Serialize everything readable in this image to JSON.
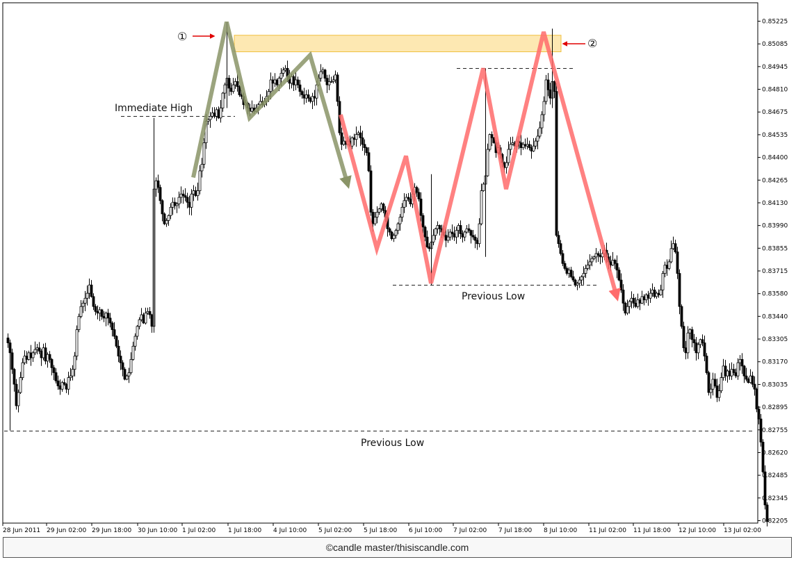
{
  "chart_data": {
    "type": "candlestick",
    "title": "",
    "y_ticks": [
      "0.85225",
      "0.85085",
      "0.84945",
      "0.84810",
      "0.84675",
      "0.84535",
      "0.84400",
      "0.84265",
      "0.84130",
      "0.83990",
      "0.83855",
      "0.83715",
      "0.83580",
      "0.83440",
      "0.83305",
      "0.83170",
      "0.83035",
      "0.82895",
      "0.82755",
      "0.82620",
      "0.82485",
      "0.82345",
      "0.82205"
    ],
    "x_ticks": [
      "28 Jun 2011",
      "29 Jun 02:00",
      "29 Jun 18:00",
      "30 Jun 10:00",
      "1 Jul 02:00",
      "1 Jul 18:00",
      "4 Jul 10:00",
      "5 Jul 02:00",
      "5 Jul 18:00",
      "6 Jul 10:00",
      "7 Jul 02:00",
      "7 Jul 18:00",
      "8 Jul 10:00",
      "11 Jul 02:00",
      "11 Jul 18:00",
      "12 Jul 10:00",
      "13 Jul 02:00"
    ],
    "ylim": [
      0.82185,
      0.8529
    ],
    "close_path": [
      [
        0,
        0.8331
      ],
      [
        3,
        0.8328
      ],
      [
        6,
        0.8322
      ],
      [
        9,
        0.8312
      ],
      [
        12,
        0.8303
      ],
      [
        15,
        0.829
      ],
      [
        18,
        0.8298
      ],
      [
        21,
        0.8307
      ],
      [
        24,
        0.8316
      ],
      [
        27,
        0.832
      ],
      [
        30,
        0.8318
      ],
      [
        33,
        0.8322
      ],
      [
        36,
        0.8319
      ],
      [
        39,
        0.8322
      ],
      [
        42,
        0.8324
      ],
      [
        45,
        0.8325
      ],
      [
        48,
        0.8323
      ],
      [
        51,
        0.8319
      ],
      [
        54,
        0.8325
      ],
      [
        57,
        0.8317
      ],
      [
        60,
        0.8321
      ],
      [
        63,
        0.8318
      ],
      [
        66,
        0.8313
      ],
      [
        69,
        0.831
      ],
      [
        72,
        0.8305
      ],
      [
        75,
        0.8302
      ],
      [
        78,
        0.83
      ],
      [
        81,
        0.8304
      ],
      [
        84,
        0.8303
      ],
      [
        87,
        0.83
      ],
      [
        90,
        0.8307
      ],
      [
        93,
        0.8308
      ],
      [
        96,
        0.8312
      ],
      [
        99,
        0.832
      ],
      [
        102,
        0.8336
      ],
      [
        105,
        0.8344
      ],
      [
        108,
        0.835
      ],
      [
        111,
        0.8352
      ],
      [
        114,
        0.8355
      ],
      [
        117,
        0.8358
      ],
      [
        120,
        0.8363
      ],
      [
        123,
        0.8356
      ],
      [
        126,
        0.835
      ],
      [
        129,
        0.8347
      ],
      [
        132,
        0.8346
      ],
      [
        135,
        0.8348
      ],
      [
        138,
        0.8344
      ],
      [
        141,
        0.8343
      ],
      [
        144,
        0.8346
      ],
      [
        147,
        0.8343
      ],
      [
        150,
        0.834
      ],
      [
        153,
        0.8336
      ],
      [
        156,
        0.8332
      ],
      [
        159,
        0.8326
      ],
      [
        162,
        0.832
      ],
      [
        165,
        0.8316
      ],
      [
        168,
        0.8312
      ],
      [
        171,
        0.8306
      ],
      [
        174,
        0.8308
      ],
      [
        177,
        0.831
      ],
      [
        180,
        0.8318
      ],
      [
        183,
        0.8326
      ],
      [
        186,
        0.8332
      ],
      [
        189,
        0.8338
      ],
      [
        192,
        0.8342
      ],
      [
        195,
        0.8345
      ],
      [
        198,
        0.834
      ],
      [
        201,
        0.8346
      ],
      [
        204,
        0.8347
      ],
      [
        207,
        0.8345
      ],
      [
        210,
        0.8338
      ],
      [
        213,
        0.8421
      ],
      [
        216,
        0.8426
      ],
      [
        219,
        0.8422
      ],
      [
        222,
        0.8414
      ],
      [
        225,
        0.8406
      ],
      [
        228,
        0.84
      ],
      [
        231,
        0.8402
      ],
      [
        234,
        0.8405
      ],
      [
        237,
        0.841
      ],
      [
        240,
        0.8413
      ],
      [
        243,
        0.8411
      ],
      [
        246,
        0.8412
      ],
      [
        249,
        0.8416
      ],
      [
        252,
        0.8418
      ],
      [
        255,
        0.8417
      ],
      [
        258,
        0.8416
      ],
      [
        261,
        0.8413
      ],
      [
        264,
        0.841
      ],
      [
        267,
        0.8418
      ],
      [
        270,
        0.842
      ],
      [
        273,
        0.8417
      ],
      [
        276,
        0.842
      ],
      [
        279,
        0.8432
      ],
      [
        282,
        0.8436
      ],
      [
        285,
        0.8449
      ],
      [
        288,
        0.8462
      ],
      [
        291,
        0.8463
      ],
      [
        294,
        0.8465
      ],
      [
        297,
        0.8467
      ],
      [
        300,
        0.8465
      ],
      [
        303,
        0.8469
      ],
      [
        306,
        0.8464
      ],
      [
        309,
        0.847
      ],
      [
        312,
        0.8479
      ],
      [
        315,
        0.8484
      ],
      [
        318,
        0.8488
      ],
      [
        321,
        0.8482
      ],
      [
        324,
        0.848
      ],
      [
        327,
        0.8484
      ],
      [
        330,
        0.8486
      ],
      [
        333,
        0.8483
      ],
      [
        336,
        0.8478
      ],
      [
        339,
        0.8477
      ],
      [
        342,
        0.8472
      ],
      [
        345,
        0.8473
      ],
      [
        348,
        0.847
      ],
      [
        351,
        0.8468
      ],
      [
        354,
        0.847
      ],
      [
        357,
        0.8468
      ],
      [
        360,
        0.847
      ],
      [
        363,
        0.8472
      ],
      [
        366,
        0.8474
      ],
      [
        369,
        0.8472
      ],
      [
        372,
        0.8474
      ],
      [
        375,
        0.8477
      ],
      [
        378,
        0.848
      ],
      [
        381,
        0.8487
      ],
      [
        384,
        0.8485
      ],
      [
        387,
        0.8487
      ],
      [
        390,
        0.8484
      ],
      [
        393,
        0.8488
      ],
      [
        396,
        0.8491
      ],
      [
        399,
        0.8493
      ],
      [
        402,
        0.8494
      ],
      [
        405,
        0.8489
      ],
      [
        408,
        0.8485
      ],
      [
        411,
        0.8489
      ],
      [
        414,
        0.8484
      ],
      [
        417,
        0.8487
      ],
      [
        420,
        0.8484
      ],
      [
        423,
        0.848
      ],
      [
        426,
        0.8478
      ],
      [
        429,
        0.8476
      ],
      [
        432,
        0.8478
      ],
      [
        435,
        0.8476
      ],
      [
        438,
        0.8474
      ],
      [
        441,
        0.8477
      ],
      [
        444,
        0.8476
      ],
      [
        447,
        0.8484
      ],
      [
        450,
        0.8488
      ],
      [
        453,
        0.8492
      ],
      [
        456,
        0.8493
      ],
      [
        459,
        0.8488
      ],
      [
        462,
        0.8484
      ],
      [
        465,
        0.8486
      ],
      [
        468,
        0.8486
      ],
      [
        471,
        0.8487
      ],
      [
        474,
        0.849
      ],
      [
        477,
        0.8474
      ],
      [
        480,
        0.8455
      ],
      [
        483,
        0.8448
      ],
      [
        486,
        0.845
      ],
      [
        489,
        0.8448
      ],
      [
        492,
        0.845
      ],
      [
        495,
        0.8447
      ],
      [
        498,
        0.8452
      ],
      [
        501,
        0.8451
      ],
      [
        504,
        0.8454
      ],
      [
        507,
        0.8455
      ],
      [
        510,
        0.8452
      ],
      [
        513,
        0.8448
      ],
      [
        516,
        0.8446
      ],
      [
        519,
        0.8443
      ],
      [
        522,
        0.8432
      ],
      [
        525,
        0.8407
      ],
      [
        528,
        0.84
      ],
      [
        531,
        0.8404
      ],
      [
        534,
        0.8407
      ],
      [
        537,
        0.8409
      ],
      [
        540,
        0.8412
      ],
      [
        543,
        0.8408
      ],
      [
        546,
        0.8404
      ],
      [
        549,
        0.8397
      ],
      [
        552,
        0.8395
      ],
      [
        555,
        0.8391
      ],
      [
        558,
        0.8393
      ],
      [
        561,
        0.8396
      ],
      [
        564,
        0.84
      ],
      [
        567,
        0.8404
      ],
      [
        570,
        0.841
      ],
      [
        573,
        0.8414
      ],
      [
        576,
        0.8416
      ],
      [
        579,
        0.8415
      ],
      [
        582,
        0.8412
      ],
      [
        585,
        0.8418
      ],
      [
        588,
        0.8422
      ],
      [
        591,
        0.8419
      ],
      [
        594,
        0.8415
      ],
      [
        597,
        0.8405
      ],
      [
        600,
        0.8398
      ],
      [
        603,
        0.8392
      ],
      [
        606,
        0.8386
      ],
      [
        609,
        0.8385
      ],
      [
        612,
        0.8389
      ],
      [
        615,
        0.8393
      ],
      [
        618,
        0.8397
      ],
      [
        621,
        0.8399
      ],
      [
        624,
        0.8397
      ],
      [
        627,
        0.8395
      ],
      [
        630,
        0.8393
      ],
      [
        633,
        0.839
      ],
      [
        636,
        0.8392
      ],
      [
        639,
        0.8395
      ],
      [
        642,
        0.8394
      ],
      [
        645,
        0.8392
      ],
      [
        648,
        0.8396
      ],
      [
        651,
        0.8399
      ],
      [
        654,
        0.8394
      ],
      [
        657,
        0.8392
      ],
      [
        660,
        0.8395
      ],
      [
        663,
        0.8397
      ],
      [
        666,
        0.8396
      ],
      [
        669,
        0.8393
      ],
      [
        672,
        0.8392
      ],
      [
        675,
        0.839
      ],
      [
        678,
        0.8388
      ],
      [
        681,
        0.84
      ],
      [
        684,
        0.842
      ],
      [
        687,
        0.8424
      ],
      [
        690,
        0.8429
      ],
      [
        693,
        0.8445
      ],
      [
        696,
        0.8454
      ],
      [
        699,
        0.8452
      ],
      [
        702,
        0.8449
      ],
      [
        705,
        0.8443
      ],
      [
        708,
        0.8446
      ],
      [
        711,
        0.8442
      ],
      [
        714,
        0.8437
      ],
      [
        717,
        0.8434
      ],
      [
        720,
        0.8437
      ],
      [
        723,
        0.8445
      ],
      [
        726,
        0.8448
      ],
      [
        729,
        0.8449
      ],
      [
        732,
        0.8447
      ],
      [
        735,
        0.845
      ],
      [
        738,
        0.8449
      ],
      [
        741,
        0.8446
      ],
      [
        744,
        0.8448
      ],
      [
        747,
        0.8447
      ],
      [
        750,
        0.8448
      ],
      [
        753,
        0.8446
      ],
      [
        756,
        0.8444
      ],
      [
        759,
        0.8447
      ],
      [
        762,
        0.845
      ],
      [
        765,
        0.8453
      ],
      [
        768,
        0.8458
      ],
      [
        771,
        0.8466
      ],
      [
        774,
        0.8474
      ],
      [
        777,
        0.8487
      ],
      [
        780,
        0.8481
      ],
      [
        783,
        0.8476
      ],
      [
        786,
        0.8486
      ],
      [
        789,
        0.848
      ],
      [
        792,
        0.8393
      ],
      [
        795,
        0.8388
      ],
      [
        798,
        0.8382
      ],
      [
        801,
        0.8376
      ],
      [
        804,
        0.8373
      ],
      [
        807,
        0.837
      ],
      [
        810,
        0.8372
      ],
      [
        813,
        0.8368
      ],
      [
        816,
        0.8366
      ],
      [
        819,
        0.8363
      ],
      [
        822,
        0.8364
      ],
      [
        825,
        0.8366
      ],
      [
        828,
        0.8368
      ],
      [
        831,
        0.837
      ],
      [
        834,
        0.8373
      ],
      [
        837,
        0.8375
      ],
      [
        840,
        0.8377
      ],
      [
        843,
        0.8379
      ],
      [
        846,
        0.838
      ],
      [
        849,
        0.8382
      ],
      [
        852,
        0.8381
      ],
      [
        855,
        0.838
      ],
      [
        858,
        0.8382
      ],
      [
        861,
        0.8384
      ],
      [
        864,
        0.838
      ],
      [
        867,
        0.8377
      ],
      [
        870,
        0.8375
      ],
      [
        873,
        0.8378
      ],
      [
        876,
        0.8376
      ],
      [
        879,
        0.8372
      ],
      [
        882,
        0.8366
      ],
      [
        885,
        0.836
      ],
      [
        888,
        0.8352
      ],
      [
        891,
        0.8346
      ],
      [
        894,
        0.835
      ],
      [
        897,
        0.8353
      ],
      [
        900,
        0.8355
      ],
      [
        903,
        0.8352
      ],
      [
        906,
        0.835
      ],
      [
        909,
        0.8354
      ],
      [
        912,
        0.8352
      ],
      [
        915,
        0.8356
      ],
      [
        918,
        0.8354
      ],
      [
        921,
        0.8357
      ],
      [
        924,
        0.8355
      ],
      [
        927,
        0.8358
      ],
      [
        930,
        0.836
      ],
      [
        933,
        0.8356
      ],
      [
        936,
        0.8358
      ],
      [
        939,
        0.8357
      ],
      [
        942,
        0.836
      ],
      [
        945,
        0.837
      ],
      [
        948,
        0.8375
      ],
      [
        951,
        0.8373
      ],
      [
        954,
        0.8377
      ],
      [
        957,
        0.8385
      ],
      [
        960,
        0.8388
      ],
      [
        963,
        0.8383
      ],
      [
        966,
        0.837
      ],
      [
        969,
        0.835
      ],
      [
        972,
        0.8338
      ],
      [
        975,
        0.8325
      ],
      [
        978,
        0.8322
      ],
      [
        981,
        0.8334
      ],
      [
        984,
        0.8336
      ],
      [
        987,
        0.833
      ],
      [
        990,
        0.8328
      ],
      [
        993,
        0.8322
      ],
      [
        996,
        0.8327
      ],
      [
        999,
        0.833
      ],
      [
        1002,
        0.8328
      ],
      [
        1005,
        0.832
      ],
      [
        1008,
        0.831
      ],
      [
        1011,
        0.8298
      ],
      [
        1014,
        0.83
      ],
      [
        1017,
        0.8306
      ],
      [
        1020,
        0.8302
      ],
      [
        1023,
        0.8295
      ],
      [
        1026,
        0.8299
      ],
      [
        1029,
        0.8307
      ],
      [
        1032,
        0.8314
      ],
      [
        1035,
        0.8308
      ],
      [
        1038,
        0.8311
      ],
      [
        1041,
        0.8308
      ],
      [
        1044,
        0.8312
      ],
      [
        1047,
        0.831
      ],
      [
        1050,
        0.8308
      ],
      [
        1053,
        0.8316
      ],
      [
        1056,
        0.8318
      ],
      [
        1059,
        0.8314
      ],
      [
        1062,
        0.8308
      ],
      [
        1065,
        0.8306
      ],
      [
        1068,
        0.8304
      ],
      [
        1071,
        0.8308
      ],
      [
        1074,
        0.8303
      ],
      [
        1077,
        0.83
      ],
      [
        1080,
        0.8288
      ],
      [
        1083,
        0.8282
      ],
      [
        1086,
        0.8268
      ],
      [
        1089,
        0.825
      ],
      [
        1092,
        0.823
      ],
      [
        1095,
        0.822
      ]
    ],
    "zigzag_green": [
      [
        270,
        0.8428
      ],
      [
        318,
        0.8522
      ],
      [
        351,
        0.8464
      ],
      [
        438,
        0.8502
      ],
      [
        492,
        0.8424
      ]
    ],
    "zigzag_red": [
      [
        482,
        0.8466
      ],
      [
        534,
        0.8385
      ],
      [
        576,
        0.8441
      ],
      [
        612,
        0.8364
      ],
      [
        687,
        0.8494
      ],
      [
        720,
        0.8421
      ],
      [
        774,
        0.8516
      ],
      [
        879,
        0.8356
      ]
    ],
    "dashed_levels": [
      {
        "value": 0.8465,
        "x_start": 174,
        "x_end": 338
      },
      {
        "value": 0.8494,
        "x_start": 657,
        "x_end": 824
      },
      {
        "value": 0.8363,
        "x_start": 565,
        "x_end": 862
      },
      {
        "value": 0.8275,
        "x_start": 6,
        "x_end": 1084
      }
    ],
    "zone": {
      "y_from": 0.8504,
      "y_to": 0.8514,
      "x_start": 337,
      "x_end": 807
    },
    "annotations": [
      "Immediate High",
      "Previous Low",
      "Previous Low"
    ],
    "markers": [
      "①",
      "②"
    ]
  },
  "labels": {
    "immediate_high": "Immediate High",
    "previous_low_mid": "Previous Low",
    "previous_low_bottom": "Previous Low",
    "marker_1": "①",
    "marker_2": "②"
  },
  "footer": {
    "credit": "©candle master/thisiscandle.com"
  },
  "colors": {
    "green_zigzag": "#8a9467",
    "red_zigzag": "#ff6b6b",
    "zone_fill": "#fde8b2",
    "zone_border": "#f0c040",
    "marker_arrow": "#e00000"
  }
}
